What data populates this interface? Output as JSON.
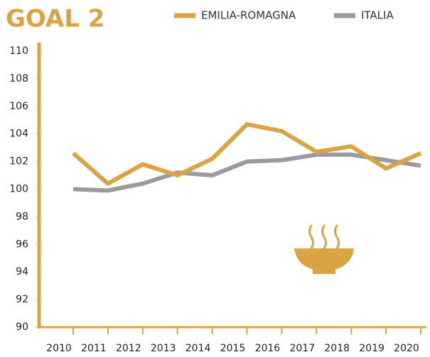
{
  "chart_data": {
    "type": "line",
    "title": "GOAL 2",
    "categories": [
      "2010",
      "2011",
      "2012",
      "2013",
      "2014",
      "2015",
      "2016",
      "2017",
      "2018",
      "2019",
      "2020"
    ],
    "series": [
      {
        "name": "EMILIA-ROMAGNA",
        "color": "#d9a441",
        "values": [
          102.6,
          100.4,
          101.8,
          101.0,
          102.2,
          104.7,
          104.2,
          102.7,
          103.1,
          101.5,
          102.6
        ]
      },
      {
        "name": "ITALIA",
        "color": "#9b9b9b",
        "values": [
          100.0,
          99.9,
          100.4,
          101.2,
          101.0,
          102.0,
          102.1,
          102.5,
          102.5,
          102.1,
          101.7
        ]
      }
    ],
    "ylim": [
      90,
      110
    ],
    "yticks": [
      90,
      92,
      94,
      96,
      98,
      100,
      102,
      104,
      106,
      108,
      110
    ],
    "axis_color": "#d9a441"
  }
}
